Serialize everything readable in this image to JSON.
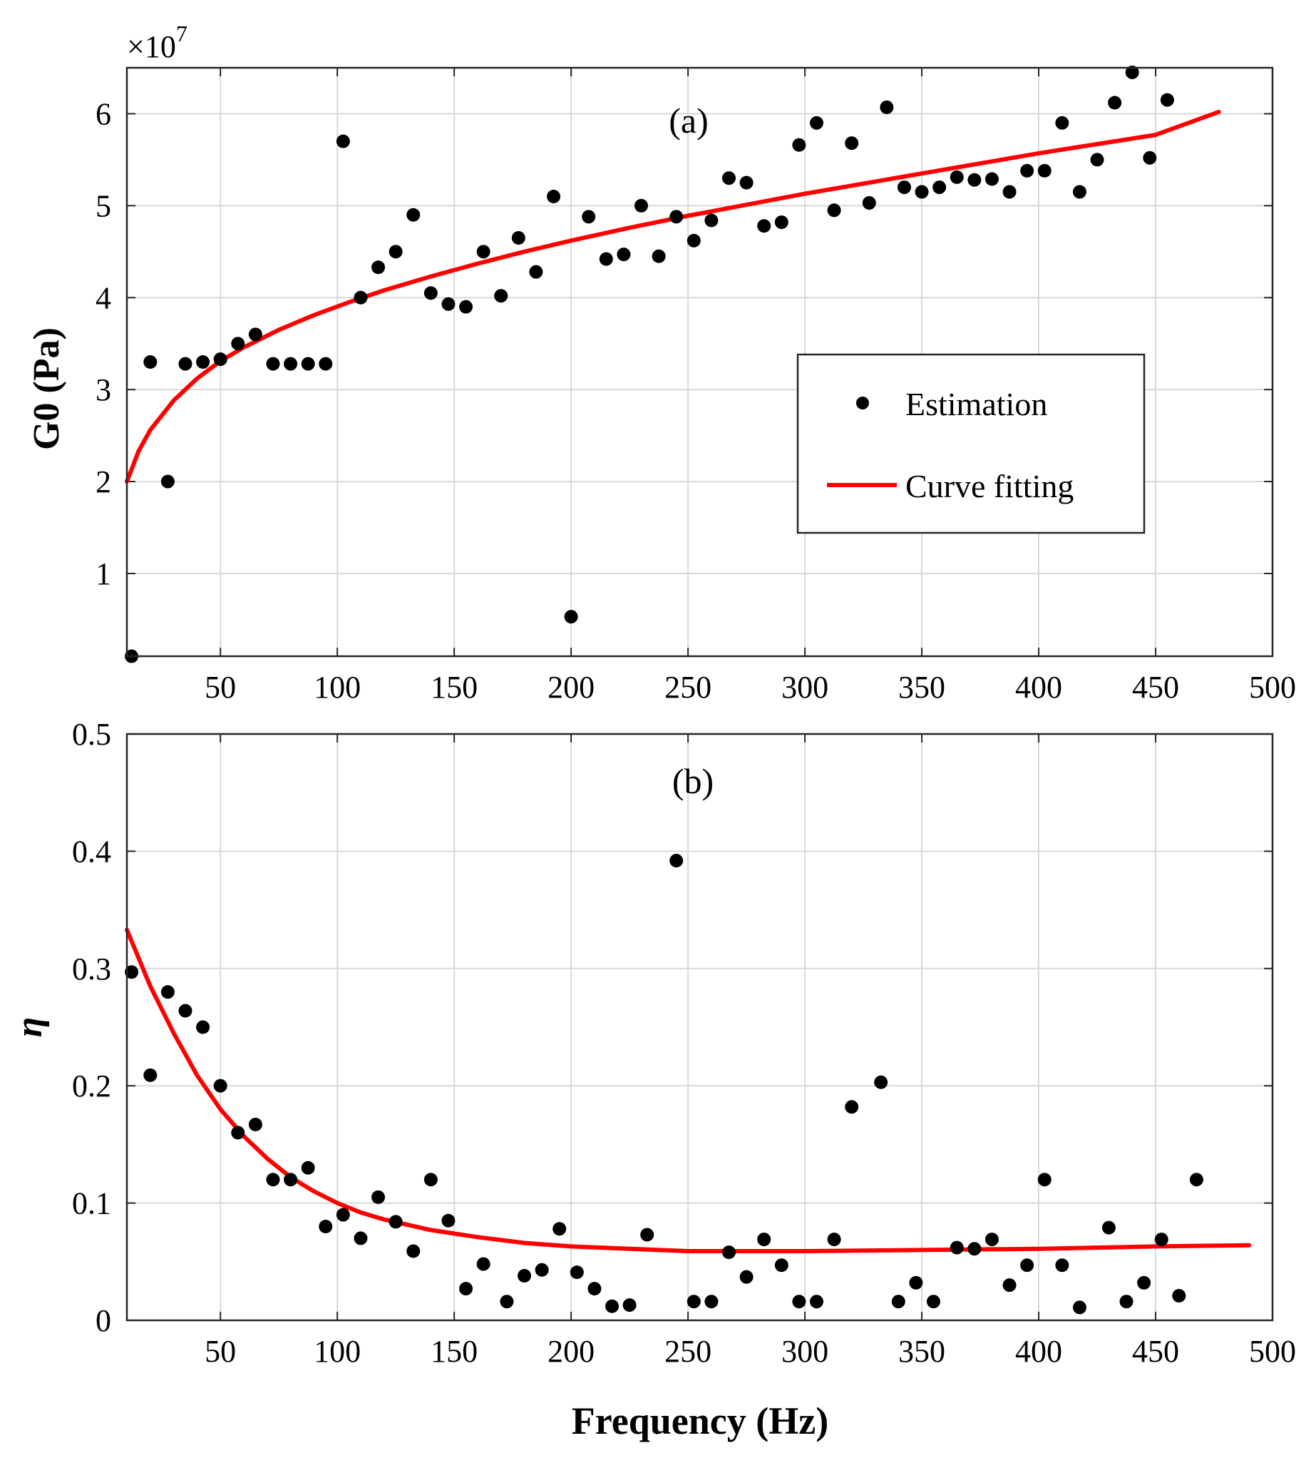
{
  "chart_data": [
    {
      "type": "scatter",
      "panel_label": "(a)",
      "ylabel": "G0 (Pa)",
      "exponent_label": "×10",
      "exponent_power": "7",
      "xlim": [
        10,
        500
      ],
      "ylim": [
        0.1,
        6.5
      ],
      "xticks": [
        "50",
        "100",
        "150",
        "200",
        "250",
        "300",
        "350",
        "400",
        "450",
        "500"
      ],
      "yticks": [
        "1",
        "2",
        "3",
        "4",
        "5",
        "6"
      ],
      "grid": true,
      "legend": {
        "position": "right-middle",
        "entries": [
          "Estimation",
          "Curve fitting"
        ]
      },
      "colors": {
        "points": "#000000",
        "fit": "#ff0000"
      },
      "series": [
        {
          "name": "Estimation",
          "x": [
            12,
            20,
            27.5,
            35,
            42.5,
            50,
            57.5,
            65,
            72.5,
            80,
            87.5,
            95,
            102.5,
            110,
            117.5,
            125,
            132.5,
            140,
            147.5,
            155,
            162.5,
            170,
            177.5,
            185,
            192.5,
            200,
            207.5,
            215,
            222.5,
            230,
            237.5,
            245,
            252.5,
            260,
            267.5,
            275,
            282.5,
            290,
            297.5,
            305,
            312.5,
            320,
            327.5,
            335,
            342.5,
            350,
            357.5,
            365,
            372.5,
            380,
            387.5,
            395,
            402.5,
            410,
            417.5,
            425,
            432.5,
            440,
            447.5,
            455
          ],
          "y": [
            0.1,
            3.3,
            2.0,
            3.28,
            3.3,
            3.33,
            3.5,
            3.6,
            3.28,
            3.28,
            3.28,
            3.28,
            5.7,
            4.0,
            4.33,
            4.5,
            4.9,
            4.05,
            3.93,
            3.9,
            4.5,
            4.02,
            4.65,
            4.28,
            5.1,
            0.53,
            4.88,
            4.42,
            4.47,
            5.0,
            4.45,
            4.88,
            4.62,
            4.84,
            5.3,
            5.25,
            4.78,
            4.82,
            5.66,
            5.9,
            4.95,
            5.68,
            5.03,
            6.07,
            5.2,
            5.15,
            5.2,
            5.31,
            5.28,
            5.29,
            5.15,
            5.38,
            5.38,
            5.9,
            5.15,
            5.5,
            6.12,
            6.45,
            5.52,
            6.15
          ]
        },
        {
          "name": "Curve fitting",
          "x": [
            10,
            15,
            20,
            30,
            40,
            50,
            60,
            75,
            90,
            105,
            120,
            140,
            160,
            180,
            200,
            225,
            250,
            275,
            300,
            325,
            350,
            375,
            400,
            425,
            450,
            477
          ],
          "y": [
            2.0,
            2.33,
            2.56,
            2.88,
            3.12,
            3.31,
            3.46,
            3.65,
            3.81,
            3.95,
            4.08,
            4.23,
            4.37,
            4.5,
            4.62,
            4.76,
            4.89,
            5.01,
            5.13,
            5.24,
            5.35,
            5.46,
            5.57,
            5.67,
            5.77,
            6.02
          ]
        }
      ]
    },
    {
      "type": "scatter",
      "panel_label": "(b)",
      "ylabel": "η",
      "xlabel": "Frequency (Hz)",
      "xlim": [
        10,
        500
      ],
      "ylim": [
        0,
        0.5
      ],
      "xticks": [
        "50",
        "100",
        "150",
        "200",
        "250",
        "300",
        "350",
        "400",
        "450",
        "500"
      ],
      "yticks": [
        "0",
        "0.1",
        "0.2",
        "0.3",
        "0.4",
        "0.5"
      ],
      "grid": true,
      "colors": {
        "points": "#000000",
        "fit": "#ff0000"
      },
      "series": [
        {
          "name": "Estimation",
          "x": [
            12,
            20,
            27.5,
            35,
            42.5,
            50,
            57.5,
            65,
            72.5,
            80,
            87.5,
            95,
            102.5,
            110,
            117.5,
            125,
            132.5,
            140,
            147.5,
            155,
            162.5,
            172.5,
            180,
            187.5,
            195,
            202.5,
            210,
            217.5,
            225,
            232.5,
            245,
            252.5,
            260,
            267.5,
            275,
            282.5,
            290,
            297.5,
            305,
            312.5,
            320,
            332.5,
            340,
            347.5,
            355,
            365,
            372.5,
            380,
            387.5,
            395,
            402.5,
            410,
            417.5,
            430,
            437.5,
            445,
            452.5,
            460,
            467.5
          ],
          "y": [
            0.297,
            0.209,
            0.28,
            0.264,
            0.25,
            0.2,
            0.16,
            0.167,
            0.12,
            0.12,
            0.13,
            0.08,
            0.09,
            0.07,
            0.105,
            0.084,
            0.059,
            0.12,
            0.085,
            0.027,
            0.048,
            0.016,
            0.038,
            0.043,
            0.078,
            0.041,
            0.027,
            0.012,
            0.013,
            0.073,
            0.392,
            0.016,
            0.016,
            0.058,
            0.037,
            0.069,
            0.047,
            0.016,
            0.016,
            0.069,
            0.182,
            0.203,
            0.016,
            0.032,
            0.016,
            0.062,
            0.061,
            0.069,
            0.03,
            0.047,
            0.12,
            0.047,
            0.011,
            0.079,
            0.016,
            0.032,
            0.069,
            0.021,
            0.12
          ]
        },
        {
          "name": "Curve fitting",
          "x": [
            10,
            20,
            30,
            40,
            50,
            60,
            70,
            80,
            90,
            100,
            110,
            120,
            140,
            160,
            180,
            200,
            250,
            300,
            350,
            400,
            450,
            490
          ],
          "y": [
            0.333,
            0.285,
            0.245,
            0.209,
            0.18,
            0.157,
            0.138,
            0.122,
            0.11,
            0.1,
            0.092,
            0.086,
            0.077,
            0.071,
            0.066,
            0.063,
            0.059,
            0.059,
            0.06,
            0.061,
            0.063,
            0.064
          ]
        }
      ]
    }
  ]
}
